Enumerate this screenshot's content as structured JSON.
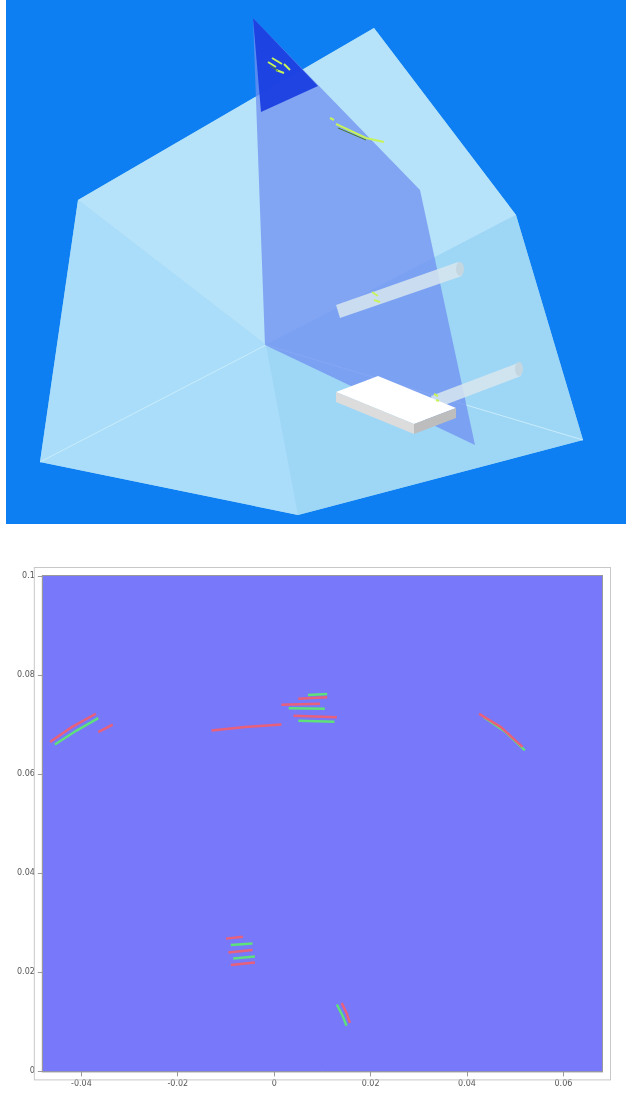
{
  "chart_data": {
    "type": "line",
    "xlim": [
      -0.048,
      0.068
    ],
    "ylim": [
      0,
      0.1
    ],
    "xticks": [
      -0.04,
      -0.02,
      0,
      0.02,
      0.04,
      0.06
    ],
    "yticks": [
      0,
      0.02,
      0.04,
      0.06,
      0.08,
      0.1
    ],
    "grid": false,
    "series": [
      {
        "color": "#e8607a",
        "x": [
          -0.0465,
          -0.042,
          -0.037,
          null,
          -0.0365,
          -0.0335,
          null,
          -0.013,
          -0.006,
          0.0015,
          null,
          0.0015,
          0.0095,
          null,
          0.004,
          0.013,
          null,
          0.005,
          0.011,
          null,
          0.0425,
          0.047,
          0.0515,
          null,
          -0.01,
          -0.0065,
          null,
          -0.0095,
          -0.0045,
          null,
          -0.009,
          -0.004,
          null,
          0.014,
          0.015,
          0.0157
        ],
        "values": [
          0.0665,
          0.0695,
          0.0722,
          null,
          0.0685,
          0.07,
          null,
          0.0688,
          0.0695,
          0.07,
          null,
          0.074,
          0.0742,
          null,
          0.0718,
          0.0715,
          null,
          0.0752,
          0.0755,
          null,
          0.0722,
          0.0695,
          0.0655,
          null,
          0.0268,
          0.0272,
          null,
          0.024,
          0.0245,
          null,
          0.0215,
          0.022,
          null,
          0.0138,
          0.0118,
          0.0098
        ]
      },
      {
        "color": "#5ee07a",
        "x": [
          -0.0455,
          -0.041,
          -0.0365,
          null,
          0.003,
          0.0105,
          null,
          0.005,
          0.0125,
          null,
          0.007,
          0.011,
          null,
          0.0435,
          0.048,
          0.052,
          null,
          -0.009,
          -0.0045,
          null,
          -0.0085,
          -0.004,
          null,
          0.013,
          0.0142,
          0.015
        ],
        "values": [
          0.066,
          0.0688,
          0.0713,
          null,
          0.0733,
          0.0732,
          null,
          0.0708,
          0.0706,
          null,
          0.076,
          0.0762,
          null,
          0.0715,
          0.0685,
          0.0648,
          null,
          0.0255,
          0.0258,
          null,
          0.0228,
          0.0232,
          null,
          0.0135,
          0.0112,
          0.0092
        ]
      }
    ]
  }
}
